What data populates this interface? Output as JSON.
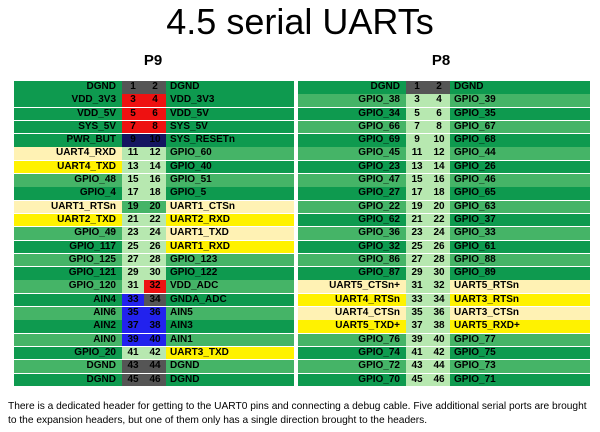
{
  "title": "4.5 serial UARTs",
  "colors": {
    "dkgreen": "#0e9a4f",
    "ltgreen": "#9ee69a",
    "mdgreen": "#45b467",
    "cream": "#fff2b4",
    "yellow": "#fff200",
    "red": "#ee1111",
    "gray": "#555555",
    "blue": "#2222ee",
    "navy": "#141460",
    "pinpale": "#b7e8b0"
  },
  "p9": {
    "label": "P9",
    "rows": [
      {
        "left": "DGND",
        "pl": "1",
        "pr": "2",
        "right": "DGND",
        "cl": "dkgreen",
        "cpl": "gray",
        "cpr": "gray",
        "cr": "dkgreen"
      },
      {
        "left": "VDD_3V3",
        "pl": "3",
        "pr": "4",
        "right": "VDD_3V3",
        "cl": "dkgreen",
        "cpl": "red",
        "cpr": "red",
        "cr": "dkgreen"
      },
      {
        "left": "VDD_5V",
        "pl": "5",
        "pr": "6",
        "right": "VDD_5V",
        "cl": "dkgreen",
        "cpl": "red",
        "cpr": "red",
        "cr": "dkgreen"
      },
      {
        "left": "SYS_5V",
        "pl": "7",
        "pr": "8",
        "right": "SYS_5V",
        "cl": "dkgreen",
        "cpl": "red",
        "cpr": "red",
        "cr": "dkgreen"
      },
      {
        "left": "PWR_BUT",
        "pl": "9",
        "pr": "10",
        "right": "SYS_RESETn",
        "cl": "dkgreen",
        "cpl": "navy",
        "cpr": "navy",
        "cr": "dkgreen"
      },
      {
        "left": "UART4_RXD",
        "pl": "11",
        "pr": "12",
        "right": "GPIO_60",
        "cl": "cream",
        "cpl": "pinpale",
        "cpr": "pinpale",
        "cr": "mdgreen"
      },
      {
        "left": "UART4_TXD",
        "pl": "13",
        "pr": "14",
        "right": "GPIO_40",
        "cl": "yellow",
        "cpl": "pinpale",
        "cpr": "pinpale",
        "cr": "dkgreen"
      },
      {
        "left": "GPIO_48",
        "pl": "15",
        "pr": "16",
        "right": "GPIO_51",
        "cl": "mdgreen",
        "cpl": "pinpale",
        "cpr": "pinpale",
        "cr": "mdgreen"
      },
      {
        "left": "GPIO_4",
        "pl": "17",
        "pr": "18",
        "right": "GPIO_5",
        "cl": "dkgreen",
        "cpl": "pinpale",
        "cpr": "pinpale",
        "cr": "dkgreen"
      },
      {
        "left": "UART1_RTSn",
        "pl": "19",
        "pr": "20",
        "right": "UART1_CTSn",
        "cl": "cream",
        "cpl": "mdgreen",
        "cpr": "mdgreen",
        "cr": "cream"
      },
      {
        "left": "UART2_TXD",
        "pl": "21",
        "pr": "22",
        "right": "UART2_RXD",
        "cl": "yellow",
        "cpl": "pinpale",
        "cpr": "pinpale",
        "cr": "yellow"
      },
      {
        "left": "GPIO_49",
        "pl": "23",
        "pr": "24",
        "right": "UART1_TXD",
        "cl": "mdgreen",
        "cpl": "pinpale",
        "cpr": "pinpale",
        "cr": "cream"
      },
      {
        "left": "GPIO_117",
        "pl": "25",
        "pr": "26",
        "right": "UART1_RXD",
        "cl": "dkgreen",
        "cpl": "pinpale",
        "cpr": "pinpale",
        "cr": "yellow"
      },
      {
        "left": "GPIO_125",
        "pl": "27",
        "pr": "28",
        "right": "GPIO_123",
        "cl": "mdgreen",
        "cpl": "pinpale",
        "cpr": "pinpale",
        "cr": "mdgreen"
      },
      {
        "left": "GPIO_121",
        "pl": "29",
        "pr": "30",
        "right": "GPIO_122",
        "cl": "dkgreen",
        "cpl": "pinpale",
        "cpr": "pinpale",
        "cr": "dkgreen"
      },
      {
        "left": "GPIO_120",
        "pl": "31",
        "pr": "32",
        "right": "VDD_ADC",
        "cl": "mdgreen",
        "cpl": "pinpale",
        "cpr": "red",
        "cr": "mdgreen"
      },
      {
        "left": "AIN4",
        "pl": "33",
        "pr": "34",
        "right": "GNDA_ADC",
        "cl": "dkgreen",
        "cpl": "blue",
        "cpr": "gray",
        "cr": "dkgreen"
      },
      {
        "left": "AIN6",
        "pl": "35",
        "pr": "36",
        "right": "AIN5",
        "cl": "mdgreen",
        "cpl": "blue",
        "cpr": "blue",
        "cr": "mdgreen"
      },
      {
        "left": "AIN2",
        "pl": "37",
        "pr": "38",
        "right": "AIN3",
        "cl": "dkgreen",
        "cpl": "blue",
        "cpr": "blue",
        "cr": "dkgreen"
      },
      {
        "left": "AIN0",
        "pl": "39",
        "pr": "40",
        "right": "AIN1",
        "cl": "mdgreen",
        "cpl": "blue",
        "cpr": "blue",
        "cr": "mdgreen"
      },
      {
        "left": "GPIO_20",
        "pl": "41",
        "pr": "42",
        "right": "UART3_TXD",
        "cl": "dkgreen",
        "cpl": "pinpale",
        "cpr": "pinpale",
        "cr": "yellow"
      },
      {
        "left": "DGND",
        "pl": "43",
        "pr": "44",
        "right": "DGND",
        "cl": "mdgreen",
        "cpl": "gray",
        "cpr": "gray",
        "cr": "mdgreen"
      },
      {
        "left": "DGND",
        "pl": "45",
        "pr": "46",
        "right": "DGND",
        "cl": "dkgreen",
        "cpl": "gray",
        "cpr": "gray",
        "cr": "dkgreen"
      }
    ]
  },
  "p8": {
    "label": "P8",
    "rows": [
      {
        "left": "DGND",
        "pl": "1",
        "pr": "2",
        "right": "DGND",
        "cl": "dkgreen",
        "cpl": "gray",
        "cpr": "gray",
        "cr": "dkgreen"
      },
      {
        "left": "GPIO_38",
        "pl": "3",
        "pr": "4",
        "right": "GPIO_39",
        "cl": "mdgreen",
        "cpl": "pinpale",
        "cpr": "pinpale",
        "cr": "mdgreen"
      },
      {
        "left": "GPIO_34",
        "pl": "5",
        "pr": "6",
        "right": "GPIO_35",
        "cl": "dkgreen",
        "cpl": "pinpale",
        "cpr": "pinpale",
        "cr": "dkgreen"
      },
      {
        "left": "GPIO_66",
        "pl": "7",
        "pr": "8",
        "right": "GPIO_67",
        "cl": "mdgreen",
        "cpl": "pinpale",
        "cpr": "pinpale",
        "cr": "mdgreen"
      },
      {
        "left": "GPIO_69",
        "pl": "9",
        "pr": "10",
        "right": "GPIO_68",
        "cl": "dkgreen",
        "cpl": "pinpale",
        "cpr": "pinpale",
        "cr": "dkgreen"
      },
      {
        "left": "GPIO_45",
        "pl": "11",
        "pr": "12",
        "right": "GPIO_44",
        "cl": "mdgreen",
        "cpl": "pinpale",
        "cpr": "pinpale",
        "cr": "mdgreen"
      },
      {
        "left": "GPIO_23",
        "pl": "13",
        "pr": "14",
        "right": "GPIO_26",
        "cl": "dkgreen",
        "cpl": "pinpale",
        "cpr": "pinpale",
        "cr": "dkgreen"
      },
      {
        "left": "GPIO_47",
        "pl": "15",
        "pr": "16",
        "right": "GPIO_46",
        "cl": "mdgreen",
        "cpl": "pinpale",
        "cpr": "pinpale",
        "cr": "mdgreen"
      },
      {
        "left": "GPIO_27",
        "pl": "17",
        "pr": "18",
        "right": "GPIO_65",
        "cl": "dkgreen",
        "cpl": "pinpale",
        "cpr": "pinpale",
        "cr": "dkgreen"
      },
      {
        "left": "GPIO_22",
        "pl": "19",
        "pr": "20",
        "right": "GPIO_63",
        "cl": "mdgreen",
        "cpl": "pinpale",
        "cpr": "pinpale",
        "cr": "mdgreen"
      },
      {
        "left": "GPIO_62",
        "pl": "21",
        "pr": "22",
        "right": "GPIO_37",
        "cl": "dkgreen",
        "cpl": "pinpale",
        "cpr": "pinpale",
        "cr": "dkgreen"
      },
      {
        "left": "GPIO_36",
        "pl": "23",
        "pr": "24",
        "right": "GPIO_33",
        "cl": "mdgreen",
        "cpl": "pinpale",
        "cpr": "pinpale",
        "cr": "mdgreen"
      },
      {
        "left": "GPIO_32",
        "pl": "25",
        "pr": "26",
        "right": "GPIO_61",
        "cl": "dkgreen",
        "cpl": "pinpale",
        "cpr": "pinpale",
        "cr": "dkgreen"
      },
      {
        "left": "GPIO_86",
        "pl": "27",
        "pr": "28",
        "right": "GPIO_88",
        "cl": "mdgreen",
        "cpl": "pinpale",
        "cpr": "pinpale",
        "cr": "mdgreen"
      },
      {
        "left": "GPIO_87",
        "pl": "29",
        "pr": "30",
        "right": "GPIO_89",
        "cl": "dkgreen",
        "cpl": "pinpale",
        "cpr": "pinpale",
        "cr": "dkgreen"
      },
      {
        "left": "UART5_CTSn+",
        "pl": "31",
        "pr": "32",
        "right": "UART5_RTSn",
        "cl": "cream",
        "cpl": "pinpale",
        "cpr": "pinpale",
        "cr": "cream"
      },
      {
        "left": "UART4_RTSn",
        "pl": "33",
        "pr": "34",
        "right": "UART3_RTSn",
        "cl": "yellow",
        "cpl": "pinpale",
        "cpr": "pinpale",
        "cr": "yellow"
      },
      {
        "left": "UART4_CTSn",
        "pl": "35",
        "pr": "36",
        "right": "UART3_CTSn",
        "cl": "cream",
        "cpl": "pinpale",
        "cpr": "pinpale",
        "cr": "cream"
      },
      {
        "left": "UART5_TXD+",
        "pl": "37",
        "pr": "38",
        "right": "UART5_RXD+",
        "cl": "yellow",
        "cpl": "pinpale",
        "cpr": "pinpale",
        "cr": "yellow"
      },
      {
        "left": "GPIO_76",
        "pl": "39",
        "pr": "40",
        "right": "GPIO_77",
        "cl": "mdgreen",
        "cpl": "pinpale",
        "cpr": "pinpale",
        "cr": "mdgreen"
      },
      {
        "left": "GPIO_74",
        "pl": "41",
        "pr": "42",
        "right": "GPIO_75",
        "cl": "dkgreen",
        "cpl": "pinpale",
        "cpr": "pinpale",
        "cr": "dkgreen"
      },
      {
        "left": "GPIO_72",
        "pl": "43",
        "pr": "44",
        "right": "GPIO_73",
        "cl": "mdgreen",
        "cpl": "pinpale",
        "cpr": "pinpale",
        "cr": "mdgreen"
      },
      {
        "left": "GPIO_70",
        "pl": "45",
        "pr": "46",
        "right": "GPIO_71",
        "cl": "dkgreen",
        "cpl": "pinpale",
        "cpr": "pinpale",
        "cr": "dkgreen"
      }
    ]
  },
  "caption": "There is a dedicated header for getting to the UART0 pins and connecting a debug cable. Five additional serial ports are brought to the expansion headers, but one of them only has a single direction brought to the headers."
}
